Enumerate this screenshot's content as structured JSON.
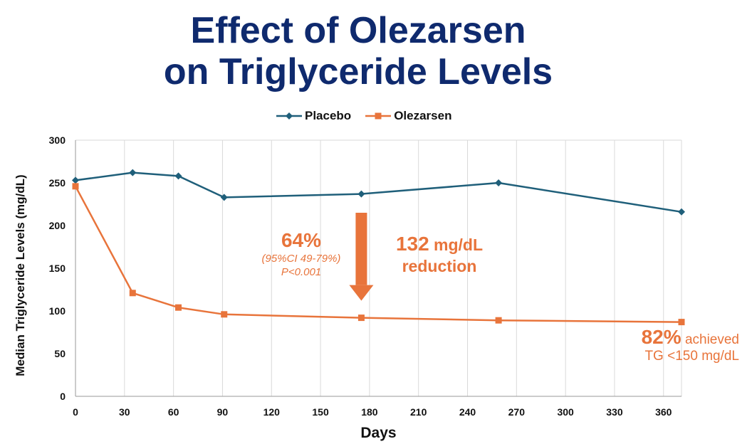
{
  "chart_data": {
    "type": "line",
    "title_lines": [
      "Effect of Olezarsen",
      "on Triglyceride Levels"
    ],
    "xlabel": "Days",
    "ylabel": "Median Triglyceride Levels (mg/dL)",
    "xlim": [
      0,
      371
    ],
    "ylim": [
      0,
      300
    ],
    "x_ticks": [
      0,
      30,
      60,
      90,
      120,
      150,
      180,
      210,
      240,
      270,
      300,
      330,
      360
    ],
    "y_ticks": [
      0,
      50,
      100,
      150,
      200,
      250,
      300
    ],
    "grid": "vertical",
    "legend_position": "top-center",
    "series": [
      {
        "name": "Placebo",
        "color": "#1f5f7a",
        "marker": "diamond",
        "points": [
          [
            0,
            253
          ],
          [
            35,
            262
          ],
          [
            63,
            258
          ],
          [
            91,
            233
          ],
          [
            175,
            237
          ],
          [
            259,
            250
          ],
          [
            371,
            216
          ]
        ]
      },
      {
        "name": "Olezarsen",
        "color": "#e8743b",
        "marker": "square",
        "points": [
          [
            0,
            246
          ],
          [
            35,
            121
          ],
          [
            63,
            104
          ],
          [
            91,
            96
          ],
          [
            175,
            92
          ],
          [
            259,
            89
          ],
          [
            371,
            87
          ]
        ]
      }
    ],
    "annotations": {
      "pct_reduction": "64%",
      "ci": "(95%CI 49-79%)",
      "p_value": "P<0.001",
      "abs_reduction_value": "132",
      "abs_reduction_unit": "mg/dL",
      "abs_reduction_word": "reduction",
      "achieved_pct": "82%",
      "achieved_word": "achieved",
      "achieved_target": "TG <150 mg/dL",
      "arrow_color": "#e8743b",
      "arrow_from": [
        175,
        215
      ],
      "arrow_to": [
        175,
        112
      ]
    }
  }
}
